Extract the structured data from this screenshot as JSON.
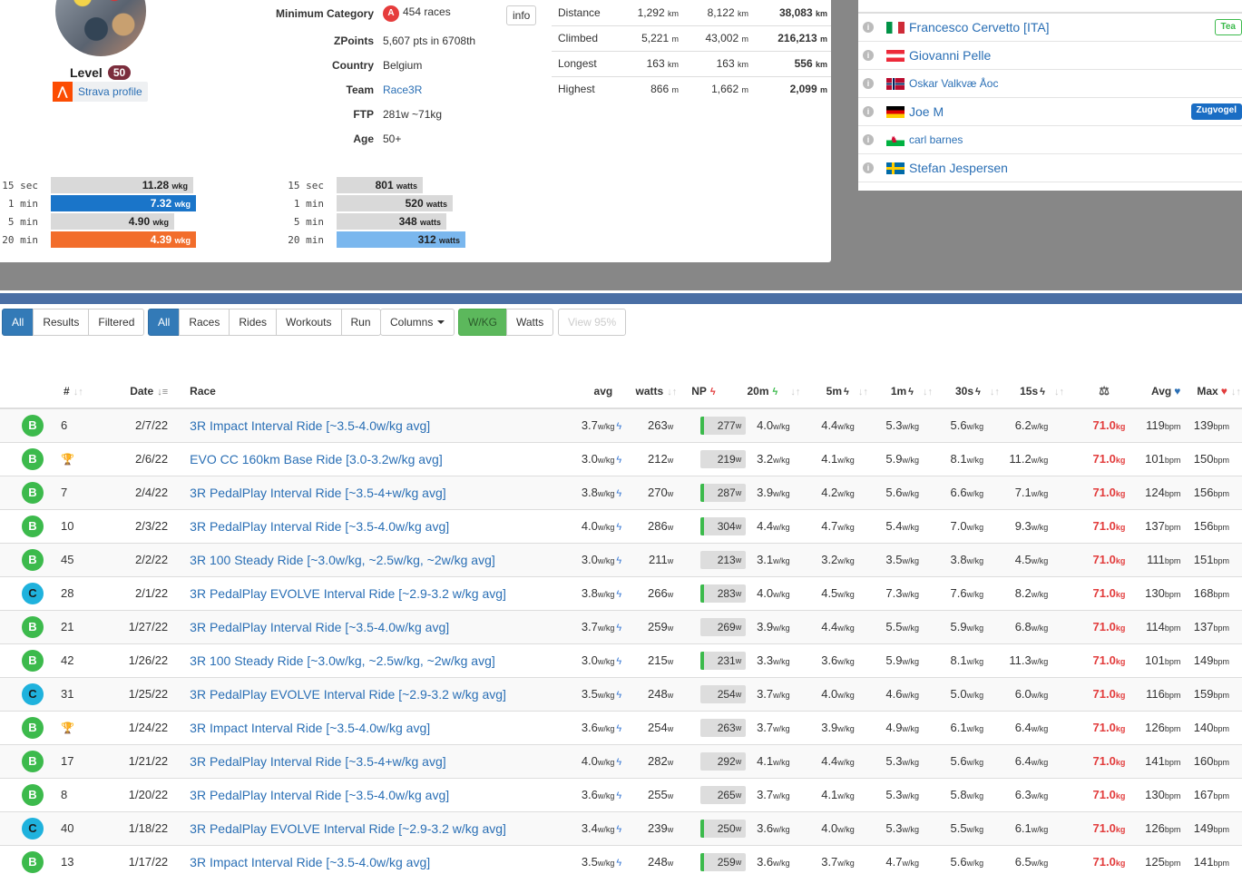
{
  "profile": {
    "level_label": "Level",
    "level": "50",
    "strava_label": "Strava profile",
    "info_label": "info",
    "stats": [
      {
        "label": "Minimum Category",
        "badge": "A",
        "value": "454 races"
      },
      {
        "label": "ZPoints",
        "value": "5,607 pts in 6708th"
      },
      {
        "label": "Country",
        "value": "Belgium"
      },
      {
        "label": "Team",
        "value": "Race3R"
      },
      {
        "label": "FTP",
        "value": "281w ~71kg"
      },
      {
        "label": "Age",
        "value": "50+"
      }
    ]
  },
  "totals": [
    {
      "label": "Distance",
      "a": "1,292",
      "au": "km",
      "b": "8,122",
      "bu": "km",
      "c": "38,083",
      "cu": "km"
    },
    {
      "label": "Climbed",
      "a": "5,221",
      "au": "m",
      "b": "43,002",
      "bu": "m",
      "c": "216,213",
      "cu": "m"
    },
    {
      "label": "Longest",
      "a": "163",
      "au": "km",
      "b": "163",
      "bu": "km",
      "c": "556",
      "cu": "km"
    },
    {
      "label": "Highest",
      "a": "866",
      "au": "m",
      "b": "1,662",
      "bu": "m",
      "c": "2,099",
      "cu": "m"
    }
  ],
  "wkg_bars": [
    {
      "label": "15 sec",
      "value": "11.28",
      "unit": "wkg",
      "fill": 0.98,
      "color": "#d9d9d9"
    },
    {
      "label": "1 min",
      "value": "7.32",
      "unit": "wkg",
      "fill": 1.0,
      "color": "#1a75c9"
    },
    {
      "label": "5 min",
      "value": "4.90",
      "unit": "wkg",
      "fill": 0.85,
      "color": "#d9d9d9"
    },
    {
      "label": "20 min",
      "value": "4.39",
      "unit": "wkg",
      "fill": 1.0,
      "color": "#f26d2b"
    }
  ],
  "watt_bars": [
    {
      "label": "15 sec",
      "value": "801",
      "unit": "watts",
      "fill": 0.67,
      "color": "#d9d9d9"
    },
    {
      "label": "1 min",
      "value": "520",
      "unit": "watts",
      "fill": 0.9,
      "color": "#d9d9d9"
    },
    {
      "label": "5 min",
      "value": "348",
      "unit": "watts",
      "fill": 0.85,
      "color": "#d9d9d9"
    },
    {
      "label": "20 min",
      "value": "312",
      "unit": "watts",
      "fill": 1.0,
      "color": "#7ab7ee"
    }
  ],
  "riders": [
    {
      "name": "Francesco Cervetto [ITA]",
      "flag": "it",
      "tag": "Tea",
      "tag_style": "outline-green"
    },
    {
      "name": "Giovanni Pelle",
      "flag": "at",
      "tag": ""
    },
    {
      "name": "Oskar Valkvæ Åoc",
      "flag": "no",
      "tag": "",
      "small": true
    },
    {
      "name": "Joe M",
      "flag": "de",
      "tag": "Zugvogel",
      "tag_style": "blue"
    },
    {
      "name": "carl barnes",
      "flag": "wales",
      "tag": "",
      "small": true
    },
    {
      "name": "Stefan Jespersen",
      "flag": "se",
      "tag": ""
    }
  ],
  "filters": {
    "group1": [
      "All",
      "Results",
      "Filtered"
    ],
    "group2": [
      "All",
      "Races",
      "Rides",
      "Workouts",
      "Run"
    ],
    "columns_label": "Columns",
    "group3": [
      "W/KG",
      "Watts"
    ],
    "view_label": "View 95%"
  },
  "table": {
    "headers": {
      "num": "#",
      "date": "Date",
      "race": "Race",
      "avg": "avg",
      "watts": "watts",
      "np": "NP",
      "m20": "20m",
      "m5": "5m",
      "m1": "1m",
      "s30": "30s",
      "s15": "15s",
      "hr_avg": "Avg",
      "hr_max": "Max"
    },
    "rows": [
      {
        "cat": "B",
        "num": "6",
        "date": "2/7/22",
        "race": "3R Impact Interval Ride [~3.5-4.0w/kg avg]",
        "avg": "3.7",
        "watts": "263",
        "np": "277",
        "np_bar": "#3cba4c",
        "m20": "4.0",
        "m5": "4.4",
        "m1": "5.3",
        "s30": "5.6",
        "s15": "6.2",
        "kg": "71.0",
        "hr_avg": "119",
        "hr_max": "139"
      },
      {
        "cat": "B",
        "num": "",
        "trophy": true,
        "date": "2/6/22",
        "race": "EVO CC 160km Base Ride [3.0-3.2w/kg avg]",
        "avg": "3.0",
        "watts": "212",
        "np": "219",
        "np_bar": "",
        "m20": "3.2",
        "m5": "4.1",
        "m1": "5.9",
        "s30": "8.1",
        "s15": "11.2",
        "kg": "71.0",
        "hr_avg": "101",
        "hr_max": "150"
      },
      {
        "cat": "B",
        "num": "7",
        "date": "2/4/22",
        "race": "3R PedalPlay Interval Ride [~3.5-4+w/kg avg]",
        "avg": "3.8",
        "watts": "270",
        "np": "287",
        "np_bar": "#3cba4c",
        "m20": "3.9",
        "m5": "4.2",
        "m1": "5.6",
        "s30": "6.6",
        "s15": "7.1",
        "kg": "71.0",
        "hr_avg": "124",
        "hr_max": "156"
      },
      {
        "cat": "B",
        "num": "10",
        "date": "2/3/22",
        "race": "3R PedalPlay Interval Ride [~3.5-4.0w/kg avg]",
        "avg": "4.0",
        "watts": "286",
        "np": "304",
        "np_bar": "#3cba4c",
        "m20": "4.4",
        "m5": "4.7",
        "m1": "5.4",
        "s30": "7.0",
        "s15": "9.3",
        "kg": "71.0",
        "hr_avg": "137",
        "hr_max": "156"
      },
      {
        "cat": "B",
        "num": "45",
        "date": "2/2/22",
        "race": "3R 100 Steady Ride [~3.0w/kg, ~2.5w/kg, ~2w/kg avg]",
        "avg": "3.0",
        "watts": "211",
        "np": "213",
        "np_bar": "",
        "m20": "3.1",
        "m5": "3.2",
        "m1": "3.5",
        "s30": "3.8",
        "s15": "4.5",
        "kg": "71.0",
        "hr_avg": "111",
        "hr_max": "151"
      },
      {
        "cat": "C",
        "num": "28",
        "date": "2/1/22",
        "race": "3R PedalPlay EVOLVE Interval Ride [~2.9-3.2 w/kg avg]",
        "avg": "3.8",
        "watts": "266",
        "np": "283",
        "np_bar": "#3cba4c",
        "m20": "4.0",
        "m5": "4.5",
        "m1": "7.3",
        "s30": "7.6",
        "s15": "8.2",
        "kg": "71.0",
        "hr_avg": "130",
        "hr_max": "168"
      },
      {
        "cat": "B",
        "num": "21",
        "date": "1/27/22",
        "race": "3R PedalPlay Interval Ride [~3.5-4.0w/kg avg]",
        "avg": "3.7",
        "watts": "259",
        "np": "269",
        "np_bar": "",
        "m20": "3.9",
        "m5": "4.4",
        "m1": "5.5",
        "s30": "5.9",
        "s15": "6.8",
        "kg": "71.0",
        "hr_avg": "114",
        "hr_max": "137"
      },
      {
        "cat": "B",
        "num": "42",
        "date": "1/26/22",
        "race": "3R 100 Steady Ride [~3.0w/kg, ~2.5w/kg, ~2w/kg avg]",
        "avg": "3.0",
        "watts": "215",
        "np": "231",
        "np_bar": "#3cba4c",
        "m20": "3.3",
        "m5": "3.6",
        "m1": "5.9",
        "s30": "8.1",
        "s15": "11.3",
        "kg": "71.0",
        "hr_avg": "101",
        "hr_max": "149"
      },
      {
        "cat": "C",
        "num": "31",
        "date": "1/25/22",
        "race": "3R PedalPlay EVOLVE Interval Ride [~2.9-3.2 w/kg avg]",
        "avg": "3.5",
        "watts": "248",
        "np": "254",
        "np_bar": "",
        "m20": "3.7",
        "m5": "4.0",
        "m1": "4.6",
        "s30": "5.0",
        "s15": "6.0",
        "kg": "71.0",
        "hr_avg": "116",
        "hr_max": "159"
      },
      {
        "cat": "B",
        "num": "",
        "trophy": true,
        "date": "1/24/22",
        "race": "3R Impact Interval Ride [~3.5-4.0w/kg avg]",
        "avg": "3.6",
        "watts": "254",
        "np": "263",
        "np_bar": "",
        "m20": "3.7",
        "m5": "3.9",
        "m1": "4.9",
        "s30": "6.1",
        "s15": "6.4",
        "kg": "71.0",
        "hr_avg": "126",
        "hr_max": "140"
      },
      {
        "cat": "B",
        "num": "17",
        "date": "1/21/22",
        "race": "3R PedalPlay Interval Ride [~3.5-4+w/kg avg]",
        "avg": "4.0",
        "watts": "282",
        "np": "292",
        "np_bar": "",
        "m20": "4.1",
        "m5": "4.4",
        "m1": "5.3",
        "s30": "5.6",
        "s15": "6.4",
        "kg": "71.0",
        "hr_avg": "141",
        "hr_max": "160"
      },
      {
        "cat": "B",
        "num": "8",
        "date": "1/20/22",
        "race": "3R PedalPlay Interval Ride [~3.5-4.0w/kg avg]",
        "avg": "3.6",
        "watts": "255",
        "np": "265",
        "np_bar": "",
        "m20": "3.7",
        "m5": "4.1",
        "m1": "5.3",
        "s30": "5.8",
        "s15": "6.3",
        "kg": "71.0",
        "hr_avg": "130",
        "hr_max": "167"
      },
      {
        "cat": "C",
        "num": "40",
        "date": "1/18/22",
        "race": "3R PedalPlay EVOLVE Interval Ride [~2.9-3.2 w/kg avg]",
        "avg": "3.4",
        "watts": "239",
        "np": "250",
        "np_bar": "#3cba4c",
        "m20": "3.6",
        "m5": "4.0",
        "m1": "5.3",
        "s30": "5.5",
        "s15": "6.1",
        "kg": "71.0",
        "hr_avg": "126",
        "hr_max": "149"
      },
      {
        "cat": "B",
        "num": "13",
        "date": "1/17/22",
        "race": "3R Impact Interval Ride [~3.5-4.0w/kg avg]",
        "avg": "3.5",
        "watts": "248",
        "np": "259",
        "np_bar": "#3cba4c",
        "m20": "3.6",
        "m5": "3.7",
        "m1": "4.7",
        "s30": "5.6",
        "s15": "6.5",
        "kg": "71.0",
        "hr_avg": "125",
        "hr_max": "141"
      }
    ]
  }
}
